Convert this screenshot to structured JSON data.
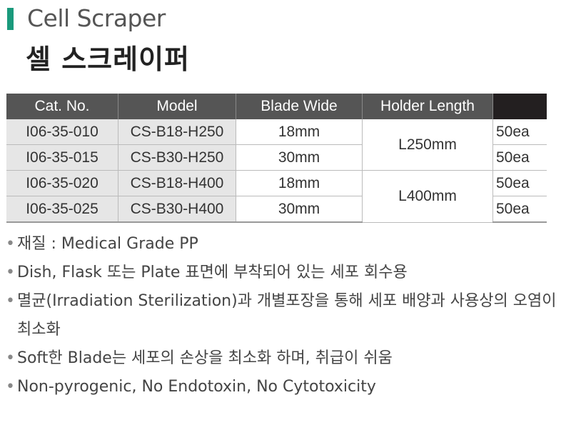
{
  "header": {
    "title_en": "Cell Scraper",
    "title_ko": "셀 스크레이퍼",
    "accent": "#1a9a7c"
  },
  "table": {
    "columns": [
      "Cat. No.",
      "Model",
      "Blade Wide",
      "Holder Length",
      ""
    ],
    "rows": [
      {
        "cat": "I06-35-010",
        "model": "CS-B18-H250",
        "blade": "18mm",
        "qty": "50ea"
      },
      {
        "cat": "I06-35-015",
        "model": "CS-B30-H250",
        "blade": "30mm",
        "qty": "50ea"
      },
      {
        "cat": "I06-35-020",
        "model": "CS-B18-H400",
        "blade": "18mm",
        "qty": "50ea"
      },
      {
        "cat": "I06-35-025",
        "model": "CS-B30-H400",
        "blade": "30mm",
        "qty": "50ea"
      }
    ],
    "holder": [
      "L250mm",
      "L400mm"
    ]
  },
  "bullets": [
    "재질 : Medical Grade PP",
    "Dish, Flask 또는 Plate 표면에 부착되어 있는 세포 회수용",
    "멸균(Irradiation Sterilization)과 개별포장을 통해 세포 배양과 사용상의 오염이 최소화",
    "Soft한 Blade는 세포의 손상을 최소화 하며, 취급이 쉬움",
    "Non-pyrogenic, No Endotoxin, No Cytotoxicity"
  ]
}
